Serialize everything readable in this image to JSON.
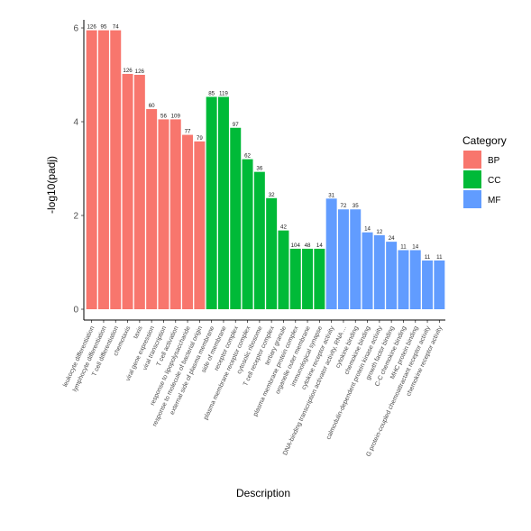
{
  "chart_data": {
    "type": "bar",
    "xlabel": "Description",
    "ylabel": "-log10(padj)",
    "ylim": [
      0,
      6
    ],
    "y_ticks": [
      0,
      2,
      4,
      6
    ],
    "grid": false,
    "legend": {
      "title": "Category",
      "placement": "right",
      "entries": [
        {
          "name": "BP",
          "color": "#F8766D"
        },
        {
          "name": "CC",
          "color": "#00BA38"
        },
        {
          "name": "MF",
          "color": "#619CFF"
        }
      ]
    },
    "bars": [
      {
        "category": "leukocyte differentiation",
        "group": "BP",
        "value": 5.95,
        "count": "126"
      },
      {
        "category": "lymphocyte differentiation",
        "group": "BP",
        "value": 5.95,
        "count": "95"
      },
      {
        "category": "T cell differentiation",
        "group": "BP",
        "value": 5.95,
        "count": "74"
      },
      {
        "category": "chemotaxis",
        "group": "BP",
        "value": 5.02,
        "count": "126"
      },
      {
        "category": "taxis",
        "group": "BP",
        "value": 5.0,
        "count": "126"
      },
      {
        "category": "viral gene expression",
        "group": "BP",
        "value": 4.27,
        "count": "60"
      },
      {
        "category": "viral transcription",
        "group": "BP",
        "value": 4.05,
        "count": "56"
      },
      {
        "category": "T cell activation",
        "group": "BP",
        "value": 4.05,
        "count": "109"
      },
      {
        "category": "response to lipopolysaccharide",
        "group": "BP",
        "value": 3.72,
        "count": "77"
      },
      {
        "category": "response to molecule of bacterial origin",
        "group": "BP",
        "value": 3.58,
        "count": "79"
      },
      {
        "category": "external side of plasma membrane",
        "group": "CC",
        "value": 4.53,
        "count": "85"
      },
      {
        "category": "side of membrane",
        "group": "CC",
        "value": 4.53,
        "count": "119"
      },
      {
        "category": "receptor complex",
        "group": "CC",
        "value": 3.87,
        "count": "97"
      },
      {
        "category": "plasma membrane receptor complex",
        "group": "CC",
        "value": 3.2,
        "count": "62"
      },
      {
        "category": "cytosolic ribosome",
        "group": "CC",
        "value": 2.93,
        "count": "36"
      },
      {
        "category": "T cell receptor complex",
        "group": "CC",
        "value": 2.37,
        "count": "32"
      },
      {
        "category": "tertiary granule",
        "group": "CC",
        "value": 1.68,
        "count": "42"
      },
      {
        "category": "plasma membrane protein complex",
        "group": "CC",
        "value": 1.29,
        "count": "104"
      },
      {
        "category": "organelle outer membrane",
        "group": "CC",
        "value": 1.29,
        "count": "48"
      },
      {
        "category": "immunological synapse",
        "group": "CC",
        "value": 1.29,
        "count": "14"
      },
      {
        "category": "cytokine receptor activity",
        "group": "MF",
        "value": 2.36,
        "count": "31"
      },
      {
        "category": "DNA-binding transcription activator activity, RNA ...",
        "group": "MF",
        "value": 2.13,
        "count": "72"
      },
      {
        "category": "cytokine binding",
        "group": "MF",
        "value": 2.13,
        "count": "35"
      },
      {
        "category": "chemokine binding",
        "group": "MF",
        "value": 1.64,
        "count": "14"
      },
      {
        "category": "calmodulin-dependent protein kinase activity",
        "group": "MF",
        "value": 1.58,
        "count": "12"
      },
      {
        "category": "growth factor binding",
        "group": "MF",
        "value": 1.44,
        "count": "24"
      },
      {
        "category": "C-C chemokine binding",
        "group": "MF",
        "value": 1.26,
        "count": "11"
      },
      {
        "category": "MHC protein binding",
        "group": "MF",
        "value": 1.26,
        "count": "14"
      },
      {
        "category": "G protein-coupled chemoattractant receptor activity",
        "group": "MF",
        "value": 1.04,
        "count": "11"
      },
      {
        "category": "chemokine receptor activity",
        "group": "MF",
        "value": 1.04,
        "count": "11"
      }
    ]
  }
}
